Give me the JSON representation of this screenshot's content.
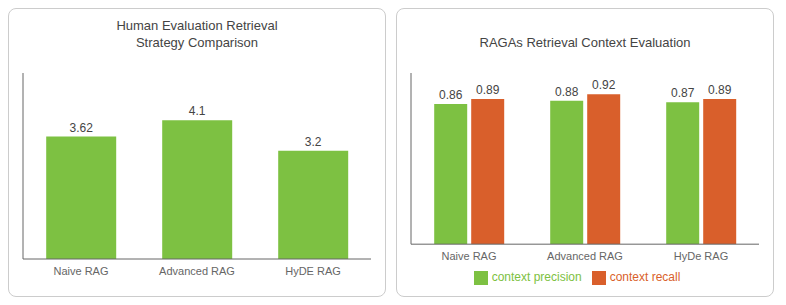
{
  "chart_data": [
    {
      "type": "bar",
      "title": "Human Evaluation Retrieval\nStrategy Comparison",
      "categories": [
        "Naive RAG",
        "Advanced RAG",
        "HyDE RAG"
      ],
      "values": [
        3.62,
        4.1,
        3.2
      ],
      "color": "#7DC142",
      "ylim": [
        0,
        5.5
      ],
      "tick_labels": "x",
      "data_labels": true
    },
    {
      "type": "bar",
      "title": "RAGAs Retrieval Context Evaluation",
      "categories": [
        "Naive RAG",
        "Advanced RAG",
        "HyDe RAG"
      ],
      "series": [
        {
          "name": "context precision",
          "color": "#7DC142",
          "values": [
            0.86,
            0.88,
            0.87
          ]
        },
        {
          "name": "context recall",
          "color": "#D95F2B",
          "values": [
            0.89,
            0.92,
            0.89
          ]
        }
      ],
      "ylim": [
        0,
        1.05
      ],
      "tick_labels": "x",
      "data_labels": true,
      "legend": "bottom"
    }
  ]
}
